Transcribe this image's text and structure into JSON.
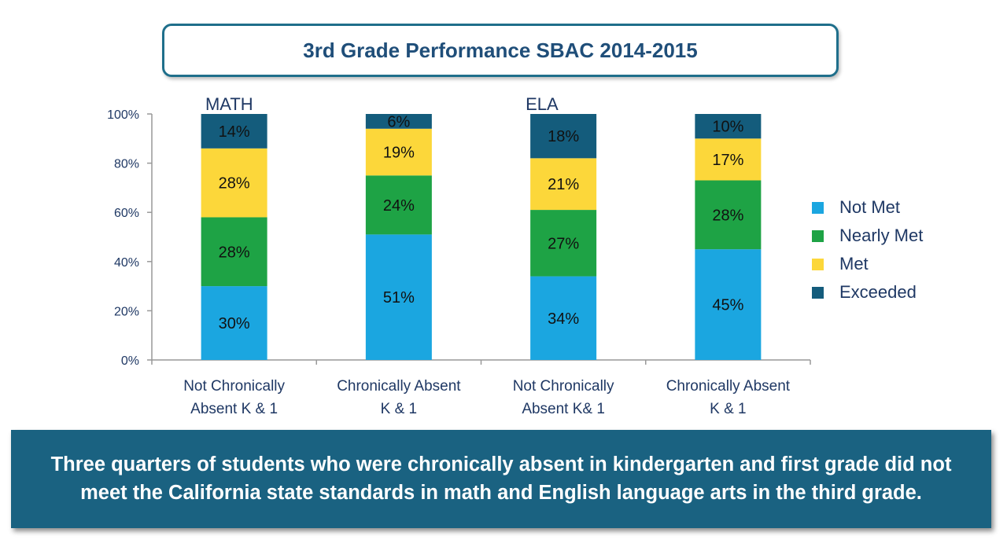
{
  "title": "3rd Grade Performance SBAC 2014-2015",
  "banner_text": "Three quarters of students who were chronically absent in kindergarten and first grade did not meet the California state standards in math and English language arts in the third grade.",
  "chart_data": {
    "type": "bar",
    "stacked": true,
    "group_labels": [
      "MATH",
      "ELA"
    ],
    "categories": [
      "Not Chronically Absent K & 1",
      "Chronically Absent K & 1",
      "Not Chronically Absent K& 1",
      "Chronically Absent K & 1"
    ],
    "category_lines": [
      [
        "Not Chronically",
        "Absent K & 1"
      ],
      [
        "Chronically Absent",
        "K & 1"
      ],
      [
        "Not Chronically",
        "Absent K& 1"
      ],
      [
        "Chronically Absent",
        "K & 1"
      ]
    ],
    "series": [
      {
        "name": "Not Met",
        "color": "#1ba6e0",
        "values": [
          30,
          51,
          34,
          45
        ]
      },
      {
        "name": "Nearly Met",
        "color": "#1ea345",
        "values": [
          28,
          24,
          27,
          28
        ]
      },
      {
        "name": "Met",
        "color": "#fcd73a",
        "values": [
          28,
          19,
          21,
          17
        ]
      },
      {
        "name": "Exceeded",
        "color": "#145c7c",
        "values": [
          14,
          6,
          18,
          10
        ]
      }
    ],
    "y_ticks": [
      "0%",
      "20%",
      "40%",
      "60%",
      "80%",
      "100%"
    ],
    "ylim": [
      0,
      100
    ],
    "legend_position": "right",
    "grid": false
  }
}
